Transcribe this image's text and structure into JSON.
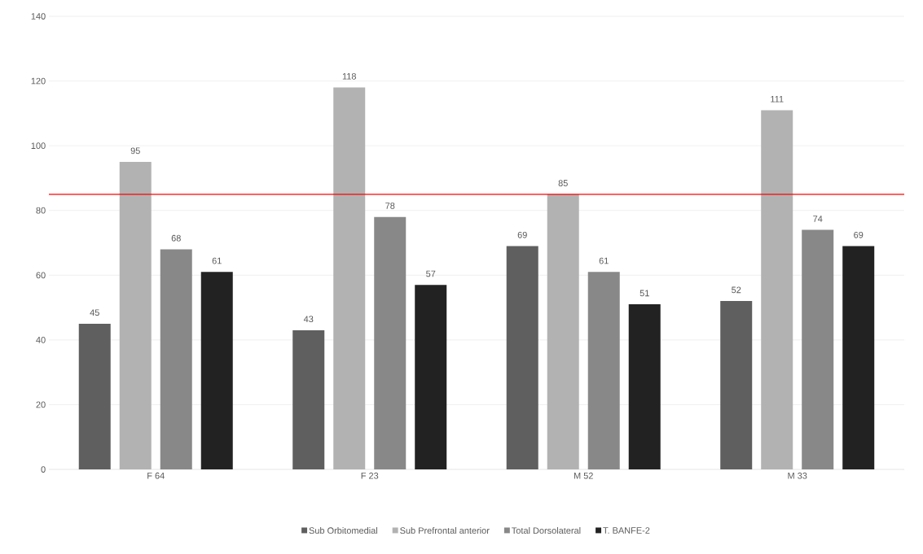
{
  "chart_data": {
    "type": "bar",
    "categories": [
      "F 64",
      "F 23",
      "M 52",
      "M 33"
    ],
    "series": [
      {
        "name": "Sub Orbitomedial",
        "color": "#5f5f5f",
        "values": [
          45,
          43,
          69,
          52
        ]
      },
      {
        "name": "Sub Prefrontal anterior",
        "color": "#b2b2b2",
        "values": [
          95,
          118,
          85,
          111
        ]
      },
      {
        "name": "Total Dorsolateral",
        "color": "#888888",
        "values": [
          68,
          78,
          61,
          74
        ]
      },
      {
        "name": "T. BANFE-2",
        "color": "#222222",
        "values": [
          61,
          57,
          51,
          69
        ]
      }
    ],
    "ylim": [
      0,
      140
    ],
    "yticks": [
      0,
      20,
      40,
      60,
      80,
      100,
      120,
      140
    ],
    "grid": "y",
    "legend": "bottom",
    "data_labels": true,
    "ref_lines": [
      {
        "axis": "y",
        "value": 85,
        "color": "#ff0000"
      }
    ]
  }
}
